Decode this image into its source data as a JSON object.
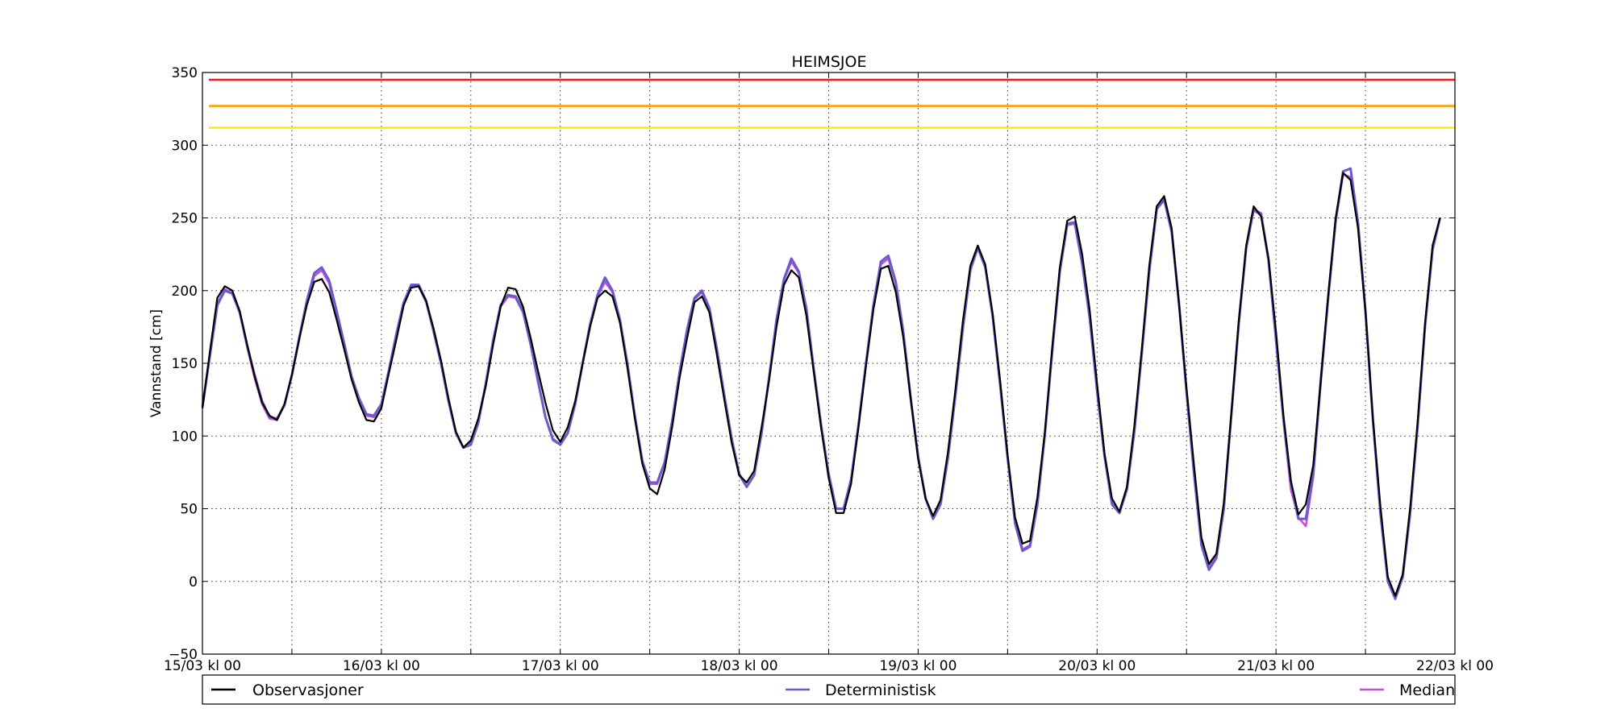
{
  "chart_data": {
    "type": "line",
    "title": "HEIMSJOE",
    "ylabel": "Vannstand [cm]",
    "xlabel": "",
    "ylim": [
      -50,
      350
    ],
    "yticks": [
      -50,
      0,
      50,
      100,
      150,
      200,
      250,
      300,
      350
    ],
    "xlim_hours": [
      0,
      168
    ],
    "xtick_labels": [
      "15/03 kl 00",
      "16/03 kl 00",
      "17/03 kl 00",
      "18/03 kl 00",
      "19/03 kl 00",
      "20/03 kl 00",
      "21/03 kl 00",
      "22/03 kl 00"
    ],
    "grid": true,
    "legend_placement": "below",
    "thresholds": [
      {
        "value": 345,
        "color": "#e8201e"
      },
      {
        "value": 327,
        "color": "#ff9f00"
      },
      {
        "value": 312,
        "color": "#ffee00"
      }
    ],
    "series": [
      {
        "name": "Observasjoner",
        "color": "#000000",
        "values": [
          119,
          158,
          195,
          203,
          200,
          186,
          163,
          141,
          123,
          114,
          111,
          122,
          142,
          167,
          190,
          206,
          208,
          199,
          180,
          160,
          139,
          123,
          111,
          110,
          119,
          143,
          166,
          190,
          202,
          203,
          193,
          174,
          152,
          126,
          103,
          92,
          97,
          112,
          134,
          163,
          189,
          202,
          201,
          189,
          168,
          145,
          123,
          104,
          96,
          106,
          124,
          150,
          175,
          195,
          200,
          196,
          178,
          147,
          112,
          81,
          64,
          60,
          77,
          106,
          140,
          167,
          192,
          196,
          185,
          156,
          125,
          95,
          73,
          68,
          76,
          106,
          138,
          175,
          204,
          214,
          209,
          183,
          144,
          105,
          71,
          47,
          47,
          67,
          106,
          148,
          187,
          215,
          217,
          199,
          168,
          126,
          84,
          57,
          45,
          56,
          89,
          132,
          179,
          217,
          231,
          218,
          184,
          138,
          87,
          44,
          26,
          28,
          58,
          103,
          162,
          216,
          248,
          251,
          225,
          187,
          136,
          88,
          57,
          48,
          65,
          107,
          160,
          217,
          258,
          265,
          243,
          190,
          133,
          80,
          30,
          12,
          19,
          54,
          115,
          179,
          231,
          258,
          251,
          222,
          172,
          114,
          69,
          46,
          53,
          80,
          138,
          197,
          250,
          281,
          276,
          243,
          186,
          112,
          52,
          3,
          -10,
          5,
          51,
          110,
          178,
          231,
          250
        ]
      },
      {
        "name": "Deterministisk",
        "color": "#6a5acd",
        "values": [
          120,
          155,
          190,
          200,
          198,
          185,
          162,
          142,
          124,
          113,
          112,
          121,
          142,
          168,
          193,
          212,
          216,
          207,
          186,
          164,
          141,
          126,
          115,
          114,
          122,
          145,
          170,
          192,
          204,
          204,
          193,
          172,
          150,
          124,
          102,
          92,
          94,
          109,
          136,
          166,
          190,
          197,
          196,
          186,
          164,
          138,
          113,
          98,
          94,
          102,
          122,
          150,
          177,
          197,
          209,
          200,
          180,
          150,
          114,
          83,
          68,
          68,
          82,
          110,
          144,
          173,
          195,
          200,
          188,
          160,
          128,
          98,
          74,
          65,
          73,
          102,
          140,
          180,
          208,
          222,
          213,
          188,
          146,
          107,
          74,
          50,
          50,
          70,
          108,
          150,
          190,
          220,
          224,
          206,
          172,
          126,
          86,
          57,
          43,
          53,
          85,
          128,
          174,
          214,
          230,
          216,
          182,
          135,
          85,
          40,
          21,
          24,
          53,
          101,
          159,
          213,
          246,
          247,
          219,
          182,
          131,
          86,
          53,
          47,
          63,
          103,
          157,
          213,
          256,
          263,
          241,
          191,
          130,
          74,
          25,
          8,
          16,
          50,
          114,
          177,
          229,
          256,
          253,
          221,
          166,
          112,
          68,
          43,
          43,
          74,
          138,
          195,
          248,
          282,
          284,
          247,
          186,
          111,
          47,
          0,
          -12,
          3,
          47,
          107,
          176,
          228,
          250
        ]
      },
      {
        "name": "Median",
        "color": "#c54fd6",
        "values": [
          120,
          156,
          191,
          201,
          198,
          185,
          161,
          140,
          122,
          112,
          111,
          121,
          142,
          167,
          192,
          210,
          214,
          205,
          183,
          162,
          140,
          124,
          114,
          113,
          121,
          144,
          168,
          191,
          203,
          203,
          192,
          172,
          150,
          124,
          102,
          92,
          95,
          110,
          136,
          165,
          189,
          196,
          195,
          185,
          163,
          138,
          113,
          97,
          94,
          102,
          122,
          150,
          176,
          196,
          206,
          199,
          179,
          149,
          113,
          82,
          67,
          67,
          81,
          109,
          143,
          172,
          194,
          199,
          187,
          159,
          127,
          97,
          73,
          65,
          73,
          102,
          140,
          179,
          207,
          220,
          212,
          187,
          145,
          106,
          73,
          50,
          50,
          70,
          107,
          149,
          189,
          218,
          222,
          205,
          171,
          125,
          85,
          57,
          43,
          53,
          85,
          128,
          174,
          214,
          229,
          216,
          182,
          135,
          85,
          41,
          22,
          25,
          54,
          101,
          159,
          213,
          245,
          246,
          218,
          181,
          131,
          86,
          54,
          48,
          64,
          104,
          157,
          213,
          256,
          262,
          240,
          190,
          130,
          75,
          27,
          10,
          17,
          51,
          114,
          177,
          229,
          255,
          252,
          220,
          166,
          110,
          63,
          44,
          38,
          72,
          136,
          194,
          247,
          280,
          278,
          245,
          185,
          110,
          47,
          1,
          -10,
          4,
          47,
          107,
          176,
          228,
          250
        ]
      }
    ]
  }
}
